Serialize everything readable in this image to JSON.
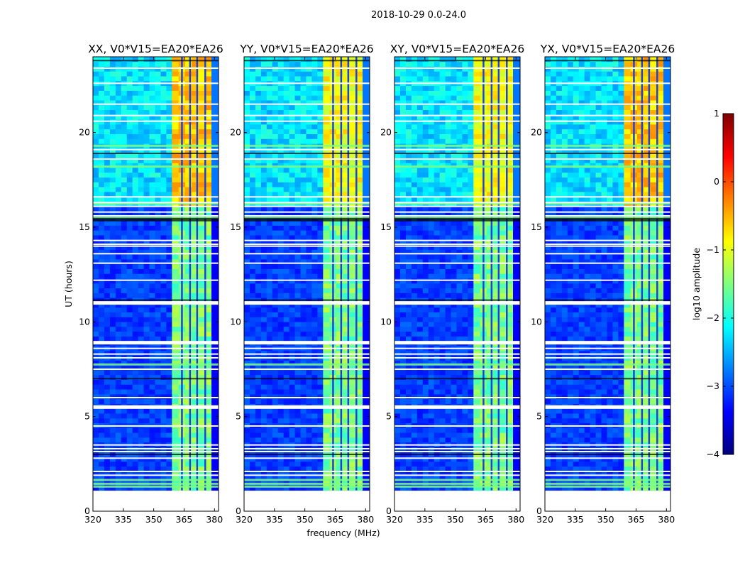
{
  "chart_data": {
    "type": "heatmap",
    "suptitle": "2018-10-29 0.0-24.0",
    "xlabel": "frequency (MHz)",
    "ylabel": "UT (hours)",
    "xlim": [
      320,
      382
    ],
    "ylim": [
      0,
      24
    ],
    "x_ticks": [
      320,
      335,
      350,
      365,
      380
    ],
    "y_ticks": [
      0,
      5,
      10,
      15,
      20
    ],
    "panels": [
      {
        "title": "XX, V0*V15=EA20*EA26"
      },
      {
        "title": "YY, V0*V15=EA20*EA26"
      },
      {
        "title": "XY, V0*V15=EA20*EA26"
      },
      {
        "title": "YX, V0*V15=EA20*EA26"
      }
    ],
    "data_extent": {
      "ut_start": 1.1,
      "ut_end": 24.0
    },
    "bright_band_mhz": [
      359,
      378.5
    ],
    "band_channel_gaps_mhz": [
      363.5,
      367.5,
      371,
      375
    ],
    "flagged_ut_hours": [
      1.9,
      2.1,
      2.8,
      3.0,
      3.15,
      3.3,
      3.5,
      4.5,
      5.5,
      6.0,
      7.0,
      7.5,
      8.1,
      8.3,
      8.6,
      8.9,
      11.0,
      11.15,
      12.2,
      13.1,
      13.6,
      14.0,
      14.1,
      14.3,
      15.4,
      15.6,
      15.8,
      16.1,
      16.3,
      16.6,
      18.6,
      18.9,
      19.1,
      20.6,
      20.9,
      21.5,
      22.6,
      23.4,
      23.8
    ],
    "rfi_rows_ut": [
      1.3,
      1.45,
      1.65,
      7.75,
      15.5,
      16.25,
      18.2,
      19.3
    ],
    "colorbar": {
      "label": "log10 amplitude",
      "range": [
        -4,
        1
      ],
      "ticks": [
        "1",
        "0",
        "−1",
        "−2",
        "−3",
        "−4"
      ],
      "colormap": "jet",
      "colors": [
        "#00007f",
        "#0000ff",
        "#007fff",
        "#00ffff",
        "#7fff7f",
        "#ffff00",
        "#ff7f00",
        "#ff0000",
        "#7f0000"
      ]
    }
  }
}
